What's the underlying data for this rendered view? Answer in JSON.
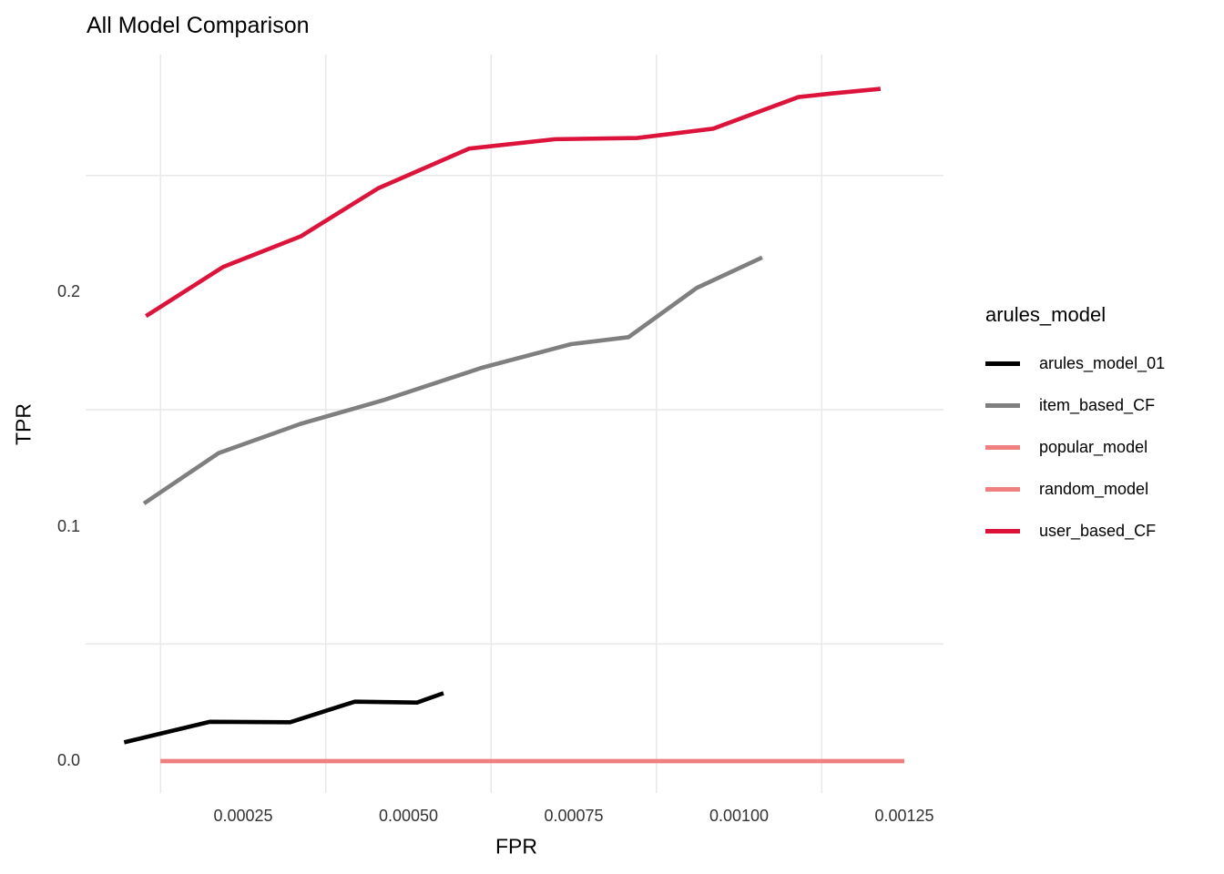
{
  "chart_data": {
    "type": "line",
    "title": "All Model Comparison",
    "xlabel": "FPR",
    "ylabel": "TPR",
    "xlim": [
      1.31e-05,
      0.0013089
    ],
    "ylim": [
      -0.0144,
      0.3016
    ],
    "x_ticks": {
      "values": [
        0.00025,
        0.0005,
        0.00075,
        0.001,
        0.00125
      ],
      "labels": [
        "0.00025",
        "0.00050",
        "0.00075",
        "0.00100",
        "0.00125"
      ]
    },
    "y_ticks": {
      "values": [
        0.0,
        0.1,
        0.2
      ],
      "labels": [
        "0.0",
        "0.1",
        "0.2"
      ]
    },
    "grid": {
      "major_shown": false,
      "minor_color": "#E9E9E9",
      "x_minor": [
        0.000125,
        0.000375,
        0.000625,
        0.000875,
        0.001125
      ],
      "y_minor": [
        0.05,
        0.15,
        0.25
      ]
    },
    "legend": {
      "title": "arules_model",
      "position": "right"
    },
    "series": [
      {
        "name": "arules_model_01",
        "color": "#000000",
        "x": [
          7e-05,
          0.0002,
          0.000321,
          0.000419,
          0.000513,
          0.000553
        ],
        "y": [
          0.008,
          0.0168,
          0.0166,
          0.0254,
          0.025,
          0.029
        ]
      },
      {
        "name": "item_based_CF",
        "color": "#7F7F7F",
        "x": [
          0.0001,
          0.000213,
          0.000337,
          0.000461,
          0.000612,
          0.000746,
          0.000833,
          0.000936,
          0.001035
        ],
        "y": [
          0.11,
          0.1315,
          0.144,
          0.154,
          0.168,
          0.178,
          0.181,
          0.202,
          0.215
        ]
      },
      {
        "name": "popular_model",
        "color": "#F08080",
        "x": [
          0.000125,
          0.00125
        ],
        "y": [
          0.0,
          0.0
        ]
      },
      {
        "name": "random_model",
        "color": "#F08080",
        "x": [
          0.000125,
          0.00125
        ],
        "y": [
          0.0,
          0.0
        ]
      },
      {
        "name": "user_based_CF",
        "color": "#DC143C",
        "x": [
          0.000103,
          0.00022,
          0.000337,
          0.000454,
          0.000592,
          0.000722,
          0.000846,
          0.000961,
          0.00109,
          0.00114,
          0.001214
        ],
        "y": [
          0.19,
          0.211,
          0.224,
          0.2445,
          0.2615,
          0.2655,
          0.266,
          0.27,
          0.2835,
          0.285,
          0.287
        ]
      }
    ]
  }
}
